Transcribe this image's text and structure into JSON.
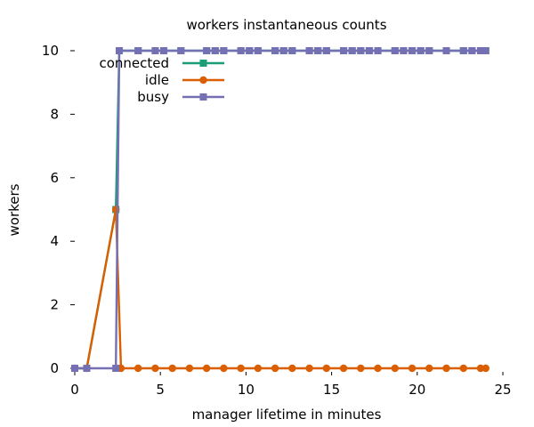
{
  "chart_data": {
    "type": "line",
    "title": "workers instantaneous counts",
    "xlabel": "manager lifetime in minutes",
    "ylabel": "workers",
    "xlim": [
      0,
      25
    ],
    "ylim": [
      0,
      10
    ],
    "x_ticks": [
      0,
      5,
      10,
      15,
      20,
      25
    ],
    "y_ticks": [
      0,
      2,
      4,
      6,
      8,
      10
    ],
    "grid": false,
    "legend_position": "top-left",
    "series": [
      {
        "name": "connected",
        "color": "#1b9e77",
        "marker": "square",
        "points": [
          [
            0,
            0
          ],
          [
            0.7,
            0
          ],
          [
            2.4,
            5
          ],
          [
            2.6,
            10
          ],
          [
            3.7,
            10
          ],
          [
            4.7,
            10
          ],
          [
            5.2,
            10
          ],
          [
            6.2,
            10
          ],
          [
            7.7,
            10
          ],
          [
            8.2,
            10
          ],
          [
            8.7,
            10
          ],
          [
            9.7,
            10
          ],
          [
            10.2,
            10
          ],
          [
            10.7,
            10
          ],
          [
            11.7,
            10
          ],
          [
            12.2,
            10
          ],
          [
            12.7,
            10
          ],
          [
            13.7,
            10
          ],
          [
            14.2,
            10
          ],
          [
            14.7,
            10
          ],
          [
            15.7,
            10
          ],
          [
            16.2,
            10
          ],
          [
            16.7,
            10
          ],
          [
            17.2,
            10
          ],
          [
            17.7,
            10
          ],
          [
            18.7,
            10
          ],
          [
            19.2,
            10
          ],
          [
            19.7,
            10
          ],
          [
            20.2,
            10
          ],
          [
            20.7,
            10
          ],
          [
            21.7,
            10
          ],
          [
            22.7,
            10
          ],
          [
            23.2,
            10
          ],
          [
            23.7,
            10
          ],
          [
            24,
            10
          ]
        ]
      },
      {
        "name": "idle",
        "color": "#d95f02",
        "marker": "circle",
        "points": [
          [
            0,
            0
          ],
          [
            0.7,
            0
          ],
          [
            2.4,
            5
          ],
          [
            2.7,
            0
          ],
          [
            3.7,
            0
          ],
          [
            4.7,
            0
          ],
          [
            5.7,
            0
          ],
          [
            6.7,
            0
          ],
          [
            7.7,
            0
          ],
          [
            8.7,
            0
          ],
          [
            9.7,
            0
          ],
          [
            10.7,
            0
          ],
          [
            11.7,
            0
          ],
          [
            12.7,
            0
          ],
          [
            13.7,
            0
          ],
          [
            14.7,
            0
          ],
          [
            15.7,
            0
          ],
          [
            16.7,
            0
          ],
          [
            17.7,
            0
          ],
          [
            18.7,
            0
          ],
          [
            19.7,
            0
          ],
          [
            20.7,
            0
          ],
          [
            21.7,
            0
          ],
          [
            22.7,
            0
          ],
          [
            23.7,
            0
          ],
          [
            24,
            0
          ]
        ]
      },
      {
        "name": "busy",
        "color": "#7570b3",
        "marker": "square",
        "points": [
          [
            0,
            0
          ],
          [
            0.7,
            0
          ],
          [
            2.4,
            0
          ],
          [
            2.6,
            10
          ],
          [
            3.7,
            10
          ],
          [
            4.7,
            10
          ],
          [
            5.2,
            10
          ],
          [
            6.2,
            10
          ],
          [
            7.7,
            10
          ],
          [
            8.2,
            10
          ],
          [
            8.7,
            10
          ],
          [
            9.7,
            10
          ],
          [
            10.2,
            10
          ],
          [
            10.7,
            10
          ],
          [
            11.7,
            10
          ],
          [
            12.2,
            10
          ],
          [
            12.7,
            10
          ],
          [
            13.7,
            10
          ],
          [
            14.2,
            10
          ],
          [
            14.7,
            10
          ],
          [
            15.7,
            10
          ],
          [
            16.2,
            10
          ],
          [
            16.7,
            10
          ],
          [
            17.2,
            10
          ],
          [
            17.7,
            10
          ],
          [
            18.7,
            10
          ],
          [
            19.2,
            10
          ],
          [
            19.7,
            10
          ],
          [
            20.2,
            10
          ],
          [
            20.7,
            10
          ],
          [
            21.7,
            10
          ],
          [
            22.7,
            10
          ],
          [
            23.2,
            10
          ],
          [
            23.7,
            10
          ],
          [
            24,
            10
          ]
        ]
      }
    ]
  }
}
